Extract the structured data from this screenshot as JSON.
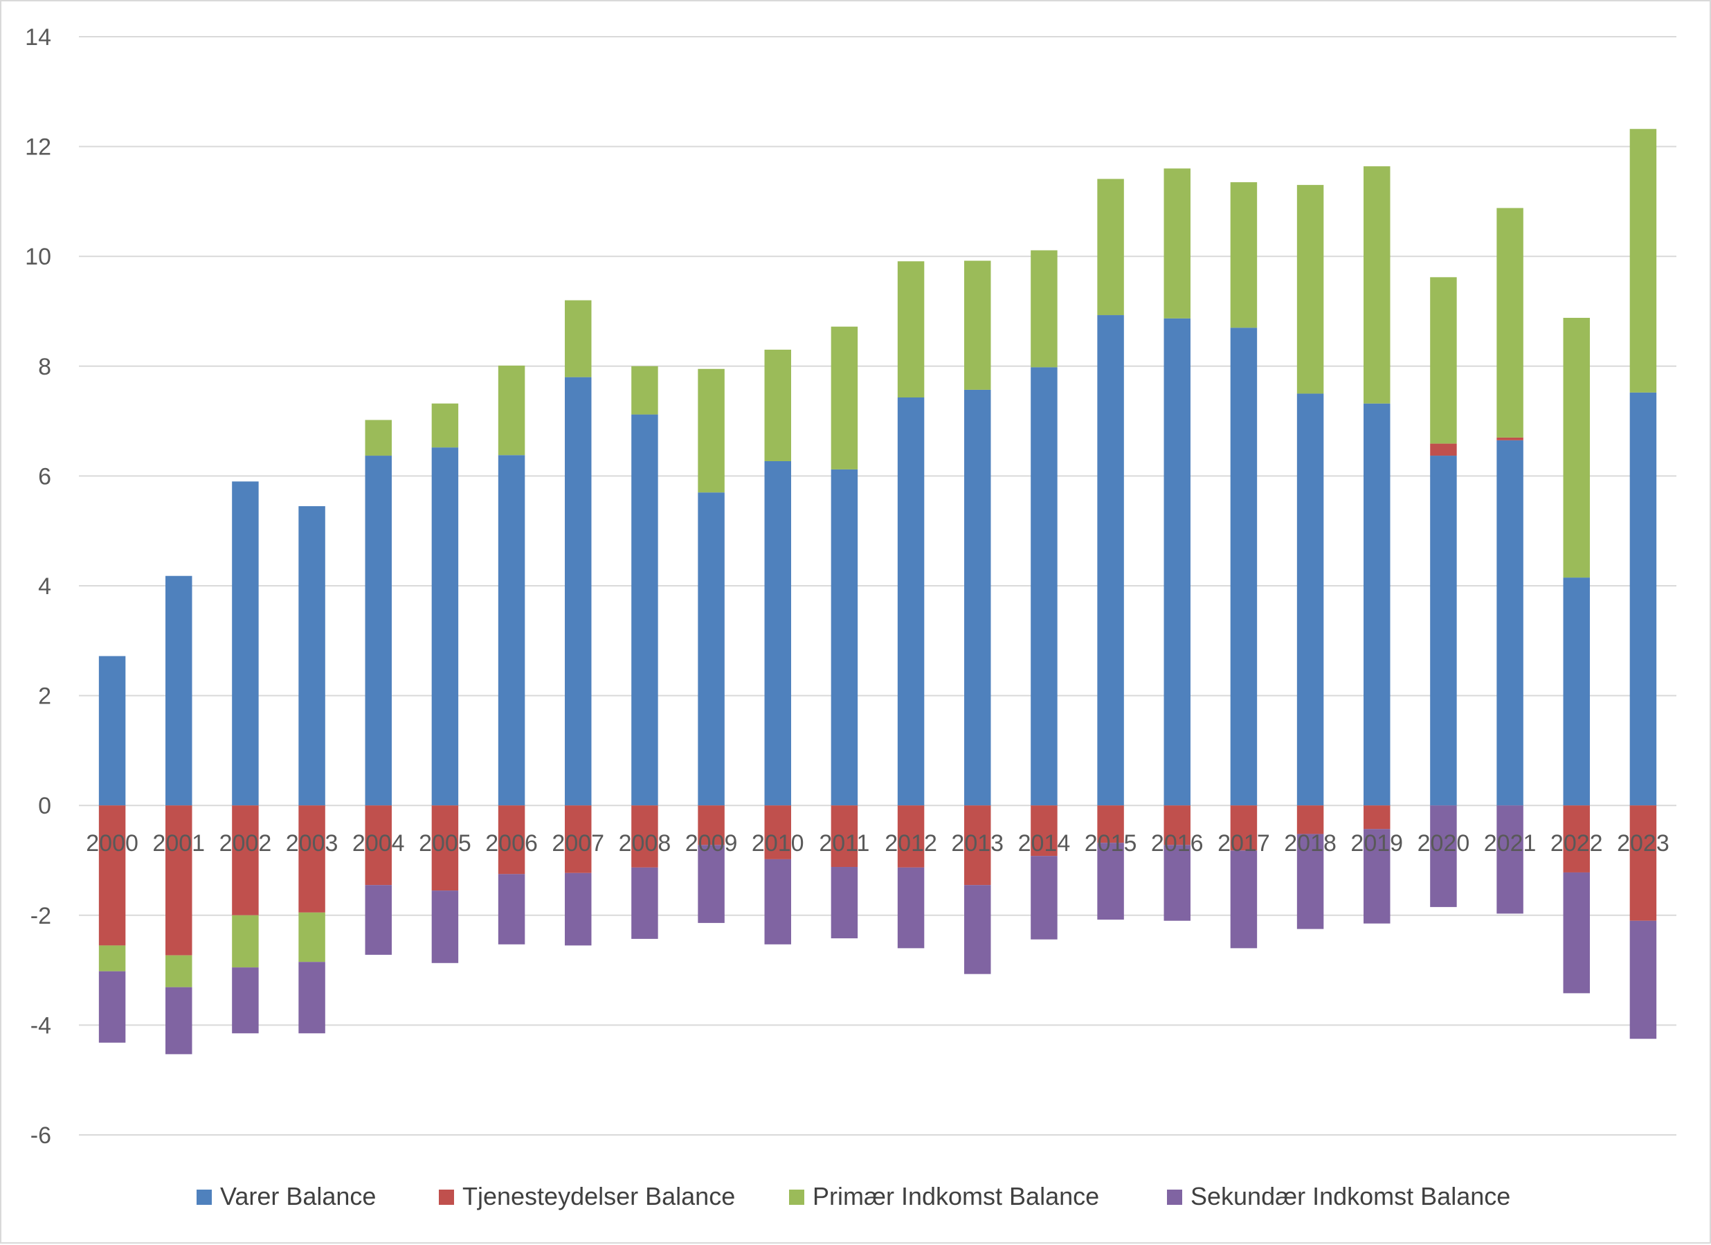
{
  "chart_data": {
    "type": "bar",
    "stacked": true,
    "title": "",
    "xlabel": "",
    "ylabel": "",
    "ylim": [
      -6,
      14
    ],
    "yticks": [
      -6,
      -4,
      -2,
      0,
      2,
      4,
      6,
      8,
      10,
      12,
      14
    ],
    "grid": true,
    "legend": "bottom",
    "categories": [
      "2000",
      "2001",
      "2002",
      "2003",
      "2004",
      "2005",
      "2006",
      "2007",
      "2008",
      "2009",
      "2010",
      "2011",
      "2012",
      "2013",
      "2014",
      "2015",
      "2016",
      "2017",
      "2018",
      "2019",
      "2020",
      "2021",
      "2022",
      "2023"
    ],
    "series": [
      {
        "name": "Varer Balance",
        "color": "#4f81bd",
        "values": [
          2.72,
          4.18,
          5.9,
          5.45,
          6.37,
          6.52,
          6.38,
          7.8,
          7.12,
          5.7,
          6.27,
          6.12,
          7.43,
          7.57,
          7.98,
          8.93,
          8.87,
          8.7,
          7.5,
          7.32,
          6.37,
          6.65,
          4.15,
          7.52
        ]
      },
      {
        "name": "Tjenesteydelser Balance",
        "color": "#c0504d",
        "values": [
          -2.55,
          -2.73,
          -2.0,
          -1.95,
          -1.45,
          -1.55,
          -1.25,
          -1.23,
          -1.13,
          -0.72,
          -0.98,
          -1.12,
          -1.13,
          -1.45,
          -0.92,
          -0.68,
          -0.72,
          -0.82,
          -0.52,
          -0.43,
          0.22,
          0.05,
          -1.22,
          -2.1
        ]
      },
      {
        "name": "Primær Indkomst Balance",
        "color": "#9bbb59",
        "values": [
          -0.47,
          -0.58,
          -0.95,
          -0.9,
          0.65,
          0.8,
          1.63,
          1.4,
          0.88,
          2.25,
          2.03,
          2.6,
          2.48,
          2.35,
          2.13,
          2.48,
          2.73,
          2.65,
          3.8,
          4.32,
          3.03,
          4.18,
          4.73,
          4.8
        ]
      },
      {
        "name": "Sekundær Indkomst Balance",
        "color": "#8064a2",
        "values": [
          -1.3,
          -1.22,
          -1.2,
          -1.3,
          -1.27,
          -1.32,
          -1.28,
          -1.32,
          -1.3,
          -1.42,
          -1.55,
          -1.3,
          -1.47,
          -1.62,
          -1.52,
          -1.4,
          -1.38,
          -1.78,
          -1.73,
          -1.72,
          -1.85,
          -1.97,
          -2.2,
          -2.15
        ]
      }
    ]
  }
}
